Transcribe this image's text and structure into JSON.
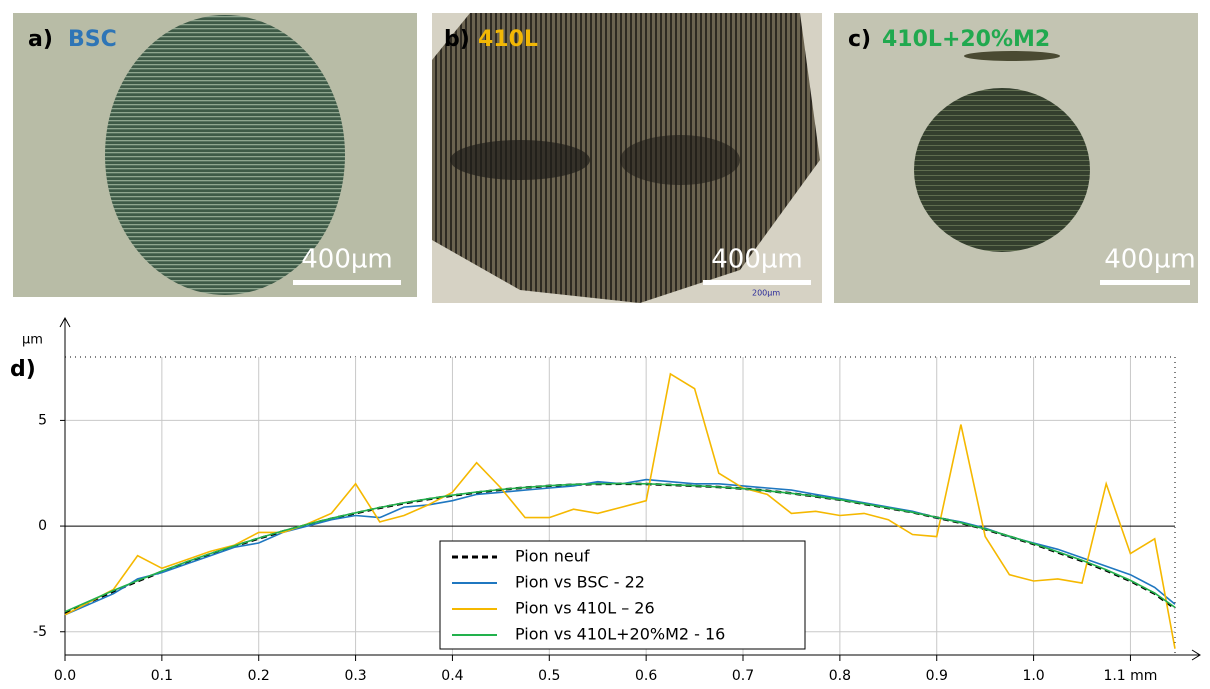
{
  "micrographs": [
    {
      "label": "a)",
      "name": "BSC",
      "color": "#2e75b6",
      "scale": "400µm"
    },
    {
      "label": "b)",
      "name": "410L",
      "color": "#f2b705",
      "scale": "400µm",
      "scale_inner": "200µm"
    },
    {
      "label": "c)",
      "name": "410L+20%M2",
      "color": "#21a94f",
      "scale": "400µm"
    }
  ],
  "chart_data": {
    "type": "line",
    "label": "d)",
    "ylabel": "µm",
    "x": [
      0,
      0.025,
      0.05,
      0.075,
      0.1,
      0.125,
      0.15,
      0.175,
      0.2,
      0.225,
      0.25,
      0.275,
      0.3,
      0.325,
      0.35,
      0.375,
      0.4,
      0.425,
      0.45,
      0.475,
      0.5,
      0.525,
      0.55,
      0.575,
      0.6,
      0.625,
      0.65,
      0.675,
      0.7,
      0.725,
      0.75,
      0.775,
      0.8,
      0.825,
      0.85,
      0.875,
      0.9,
      0.925,
      0.95,
      0.975,
      1.0,
      1.025,
      1.05,
      1.075,
      1.1,
      1.125,
      1.146
    ],
    "series": [
      {
        "name": "Pion neuf",
        "color": "#000000",
        "dashed": true,
        "values": [
          -4.11,
          -3.59,
          -3.09,
          -2.61,
          -2.16,
          -1.73,
          -1.33,
          -0.95,
          -0.59,
          -0.25,
          0.06,
          0.35,
          0.61,
          0.86,
          1.08,
          1.27,
          1.44,
          1.59,
          1.72,
          1.82,
          1.9,
          1.96,
          1.99,
          2.0,
          1.99,
          1.95,
          1.9,
          1.85,
          1.77,
          1.67,
          1.55,
          1.4,
          1.25,
          1.05,
          0.85,
          0.65,
          0.4,
          0.15,
          -0.15,
          -0.5,
          -0.85,
          -1.25,
          -1.65,
          -2.1,
          -2.6,
          -3.2,
          -3.9
        ]
      },
      {
        "name": "Pion vs BSC - 22",
        "color": "#1f77c0",
        "values": [
          -4.2,
          -3.7,
          -3.2,
          -2.5,
          -2.2,
          -1.8,
          -1.4,
          -1.0,
          -0.8,
          -0.3,
          0.0,
          0.3,
          0.5,
          0.4,
          0.9,
          1.0,
          1.2,
          1.5,
          1.6,
          1.7,
          1.8,
          1.9,
          2.1,
          2.0,
          2.2,
          2.1,
          2.0,
          2.0,
          1.9,
          1.8,
          1.7,
          1.5,
          1.3,
          1.1,
          0.9,
          0.7,
          0.4,
          0.2,
          -0.1,
          -0.5,
          -0.8,
          -1.1,
          -1.5,
          -1.9,
          -2.3,
          -2.9,
          -3.7
        ]
      },
      {
        "name": "Pion vs 410L – 26",
        "color": "#f5b800",
        "values": [
          -4.2,
          -3.6,
          -3.0,
          -1.4,
          -2.0,
          -1.6,
          -1.2,
          -0.9,
          -0.3,
          -0.3,
          0.1,
          0.6,
          2.0,
          0.2,
          0.5,
          1.0,
          1.6,
          3.0,
          1.8,
          0.4,
          0.4,
          0.8,
          0.6,
          0.9,
          1.2,
          7.2,
          6.5,
          2.5,
          1.8,
          1.5,
          0.6,
          0.7,
          0.5,
          0.6,
          0.3,
          -0.4,
          -0.5,
          4.8,
          -0.5,
          -2.3,
          -2.6,
          -2.5,
          -2.7,
          2.0,
          -1.3,
          -0.6,
          -5.8
        ]
      },
      {
        "name": "Pion vs 410L+20%M2 - 16",
        "color": "#22b14c",
        "values": [
          -4.05,
          -3.55,
          -3.05,
          -2.58,
          -2.13,
          -1.7,
          -1.3,
          -0.93,
          -0.57,
          -0.23,
          0.08,
          0.37,
          0.63,
          0.88,
          1.1,
          1.29,
          1.46,
          1.61,
          1.73,
          1.83,
          1.91,
          1.97,
          2.0,
          2.01,
          2.0,
          1.96,
          1.91,
          1.85,
          1.77,
          1.67,
          1.55,
          1.41,
          1.25,
          1.06,
          0.86,
          0.65,
          0.41,
          0.16,
          -0.14,
          -0.48,
          -0.83,
          -1.22,
          -1.62,
          -2.07,
          -2.57,
          -3.17,
          -3.85
        ]
      }
    ],
    "xlim": [
      0,
      1.146
    ],
    "ylim": [
      -6.1,
      8
    ],
    "xticks": [
      {
        "value": 0,
        "label": "0.0"
      },
      0.1,
      0.2,
      0.3,
      0.4,
      0.5,
      0.6,
      0.7,
      0.8,
      0.9,
      {
        "value": 1,
        "label": "1.0"
      },
      {
        "value": 1.1,
        "label": "1.1 mm"
      }
    ],
    "yticks": [
      -5,
      0,
      5
    ],
    "grid": true
  }
}
